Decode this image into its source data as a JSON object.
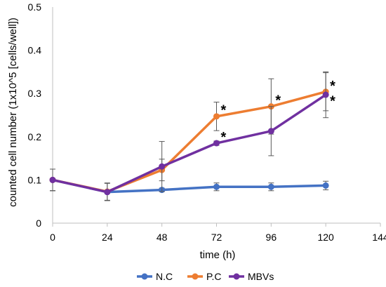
{
  "chart_data": {
    "type": "line",
    "xlabel": "time (h)",
    "ylabel": "counted cell number  (1x10^5 [cells/well])",
    "xlim": [
      0,
      144
    ],
    "ylim": [
      0,
      0.5
    ],
    "x_ticks": [
      "0",
      "24",
      "48",
      "72",
      "96",
      "120",
      "144"
    ],
    "y_ticks": [
      "0",
      "0.1",
      "0.2",
      "0.3",
      "0.4",
      "0.5"
    ],
    "grid": false,
    "legend_position": "bottom",
    "x": [
      0,
      24,
      48,
      72,
      96,
      120
    ],
    "series": [
      {
        "name": "N.C",
        "color": "#4472c4",
        "values": [
          0.1,
          0.072,
          0.077,
          0.084,
          0.084,
          0.087
        ],
        "errors": [
          0.025,
          0.003,
          0.004,
          0.009,
          0.009,
          0.01
        ]
      },
      {
        "name": "P.C",
        "color": "#ed7d31",
        "values": [
          0.1,
          0.073,
          0.123,
          0.247,
          0.27,
          0.304
        ],
        "errors": [
          0.025,
          0.02,
          0.025,
          0.033,
          0.064,
          0.044
        ]
      },
      {
        "name": "MBVs",
        "color": "#7030a0",
        "values": [
          0.1,
          0.072,
          0.131,
          0.185,
          0.213,
          0.297
        ],
        "errors": [
          0.025,
          0.02,
          0.058,
          0.005,
          0.057,
          0.053
        ]
      }
    ],
    "annotations": [
      {
        "text": "*",
        "x": 72,
        "y": 0.262
      },
      {
        "text": "*",
        "x": 96,
        "y": 0.285
      },
      {
        "text": "*",
        "x": 120,
        "y": 0.318
      },
      {
        "text": "*",
        "x": 72,
        "y": 0.2
      },
      {
        "text": "*",
        "x": 120,
        "y": 0.283
      }
    ]
  }
}
